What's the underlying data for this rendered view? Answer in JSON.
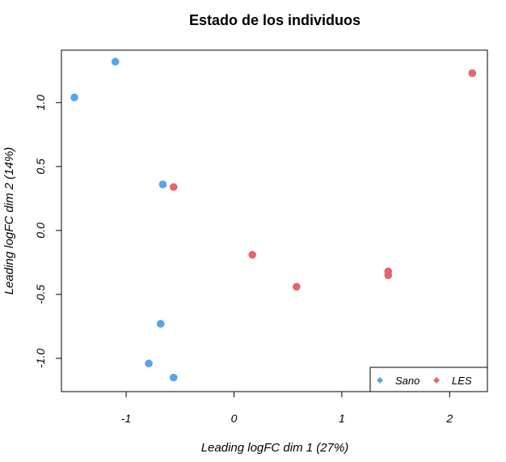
{
  "chart_data": {
    "type": "scatter",
    "title": "Estado de los individuos",
    "xlabel": "Leading logFC dim 1 (27%)",
    "ylabel": "Leading logFC dim 2 (14%)",
    "xlim": [
      -1.6,
      2.35
    ],
    "ylim": [
      -1.26,
      1.41
    ],
    "x_ticks": [
      -1,
      0,
      1,
      2
    ],
    "x_tick_labels": [
      "-1",
      "0",
      "1",
      "2"
    ],
    "y_ticks": [
      -1.0,
      -0.5,
      0.0,
      0.5,
      1.0
    ],
    "y_tick_labels": [
      "-1.0",
      "-0.5",
      "0.0",
      "0.5",
      "1.0"
    ],
    "grid": false,
    "legend_position": "bottom-right",
    "series": [
      {
        "name": "Sano",
        "color": "#56a5ec",
        "points": [
          {
            "x": -1.48,
            "y": 1.04
          },
          {
            "x": -1.1,
            "y": 1.32
          },
          {
            "x": -0.66,
            "y": 0.36
          },
          {
            "x": -0.68,
            "y": -0.73
          },
          {
            "x": -0.79,
            "y": -1.04
          },
          {
            "x": -0.56,
            "y": -1.15
          }
        ]
      },
      {
        "name": "LES",
        "color": "#e8636b",
        "points": [
          {
            "x": 2.21,
            "y": 1.23
          },
          {
            "x": -0.56,
            "y": 0.34
          },
          {
            "x": 0.17,
            "y": -0.19
          },
          {
            "x": 0.58,
            "y": -0.44
          },
          {
            "x": 1.43,
            "y": -0.32
          },
          {
            "x": 1.43,
            "y": -0.35
          }
        ]
      }
    ]
  }
}
